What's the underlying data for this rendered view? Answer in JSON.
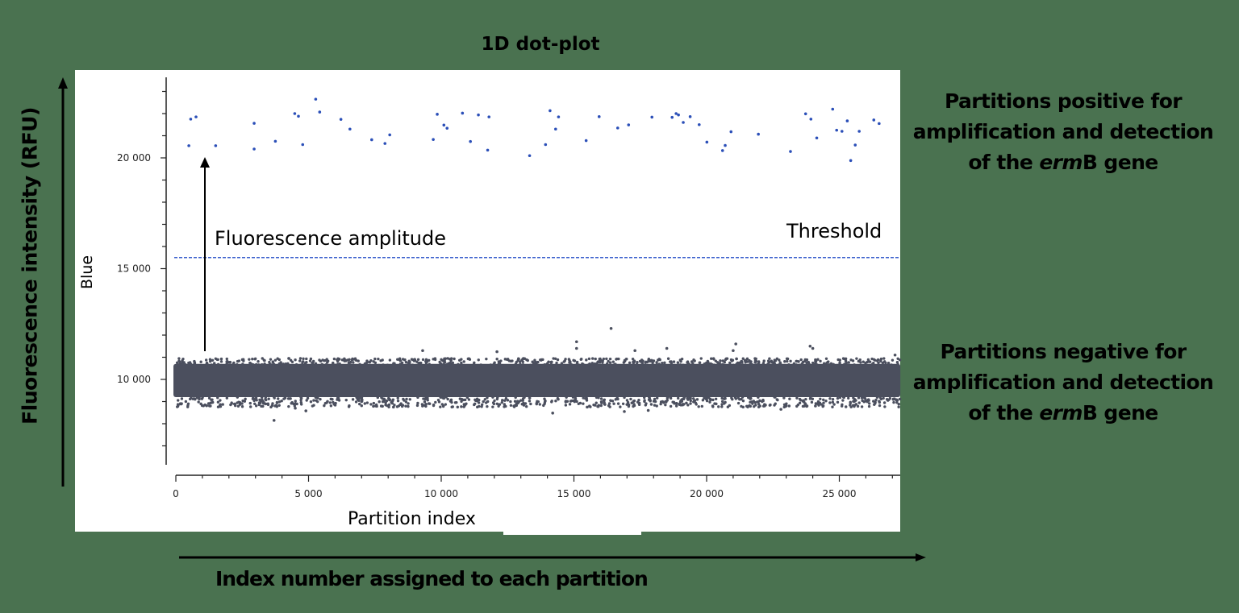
{
  "title": "1D dot-plot",
  "background_color": "#4a7250",
  "panel_color": "#ffffff",
  "annotations": {
    "positive": {
      "line1": "Partitions positive for",
      "line2": "amplification and detection",
      "line3_pre": "of the ",
      "line3_italic": "erm",
      "line3_post": "B gene"
    },
    "negative": {
      "line1": "Partitions negative for",
      "line2": "amplification and detection",
      "line3_pre": "of the ",
      "line3_italic": "erm",
      "line3_post": "B gene"
    },
    "amplitude_arrow_label": "Fluorescence amplitude",
    "threshold_label": "Threshold",
    "outer_y_title": "Fluorescence intensity (RFU)",
    "outer_x_title": "Index number assigned to each partition"
  },
  "chart_data": {
    "type": "scatter",
    "title": "1D dot-plot",
    "xlabel": "Partition index",
    "ylabel": "Blue",
    "xlim": [
      0,
      27300
    ],
    "ylim": [
      6100,
      23600
    ],
    "x_ticks": [
      0,
      5000,
      10000,
      15000,
      20000,
      25000
    ],
    "x_tick_labels": [
      "0",
      "5 000",
      "10 000",
      "15 000",
      "20 000",
      "25 000"
    ],
    "x_minor_tick_step": 1000,
    "y_ticks": [
      10000,
      15000,
      20000
    ],
    "y_tick_labels": [
      "10 000",
      "15 000",
      "20 000"
    ],
    "y_minor_tick_step": 1000,
    "grid": false,
    "legend": null,
    "threshold": {
      "value": 15500,
      "style": "dashed",
      "color": "#3a5fcd"
    },
    "series": [
      {
        "name": "Positive partitions",
        "color": "#2b4fb8",
        "point_values_note": "Estimated from pixel positions; approx. ±100 RFU and ±100 index",
        "points": [
          [
            490,
            20550
          ],
          [
            560,
            21750
          ],
          [
            760,
            21850
          ],
          [
            1500,
            20550
          ],
          [
            2950,
            21560
          ],
          [
            2950,
            20400
          ],
          [
            3750,
            20750
          ],
          [
            4480,
            22000
          ],
          [
            4620,
            21880
          ],
          [
            4780,
            20600
          ],
          [
            5270,
            22650
          ],
          [
            5420,
            22070
          ],
          [
            6220,
            21740
          ],
          [
            6560,
            21300
          ],
          [
            7380,
            20820
          ],
          [
            7880,
            20650
          ],
          [
            8060,
            21040
          ],
          [
            9700,
            20830
          ],
          [
            9850,
            21970
          ],
          [
            10100,
            21480
          ],
          [
            10220,
            21340
          ],
          [
            10800,
            22020
          ],
          [
            11100,
            20740
          ],
          [
            11400,
            21940
          ],
          [
            11750,
            20350
          ],
          [
            11800,
            21850
          ],
          [
            13330,
            20100
          ],
          [
            13930,
            20600
          ],
          [
            14100,
            22130
          ],
          [
            14310,
            21300
          ],
          [
            14420,
            21850
          ],
          [
            15460,
            20780
          ],
          [
            15950,
            21860
          ],
          [
            16650,
            21350
          ],
          [
            17060,
            21490
          ],
          [
            17940,
            21840
          ],
          [
            18700,
            21830
          ],
          [
            18850,
            22000
          ],
          [
            18940,
            21940
          ],
          [
            19120,
            21600
          ],
          [
            19380,
            21860
          ],
          [
            19720,
            21500
          ],
          [
            20010,
            20710
          ],
          [
            20600,
            20330
          ],
          [
            20700,
            20560
          ],
          [
            20920,
            21180
          ],
          [
            21950,
            21070
          ],
          [
            23160,
            20290
          ],
          [
            23730,
            21990
          ],
          [
            23930,
            21750
          ],
          [
            24150,
            20900
          ],
          [
            24750,
            22200
          ],
          [
            24900,
            21250
          ],
          [
            25100,
            21200
          ],
          [
            25300,
            21670
          ],
          [
            25430,
            19880
          ],
          [
            25600,
            20580
          ],
          [
            25750,
            21200
          ],
          [
            26300,
            21710
          ],
          [
            26500,
            21550
          ]
        ]
      },
      {
        "name": "Negative partitions",
        "color": "#4b4f5e",
        "rendering_note": "Dense band drawn procedurally (seeded pseudo-random) to match the observed band extent; individual band dots are not extracted data",
        "band_core_range": [
          9000,
          10850
        ],
        "band_center": 10300,
        "band_x_range": [
          0,
          27300
        ],
        "outliers_note": "Approximate positions estimated from pixels",
        "outliers": [
          [
            3700,
            8150
          ],
          [
            14200,
            8480
          ],
          [
            1100,
            8850
          ],
          [
            1300,
            8800
          ],
          [
            4500,
            8700
          ],
          [
            4900,
            8580
          ],
          [
            8200,
            8750
          ],
          [
            15500,
            8750
          ],
          [
            16900,
            8550
          ],
          [
            17800,
            8600
          ],
          [
            22800,
            8650
          ],
          [
            24100,
            8800
          ],
          [
            9300,
            11300
          ],
          [
            12100,
            11250
          ],
          [
            15100,
            11700
          ],
          [
            15100,
            11400
          ],
          [
            16400,
            12300
          ],
          [
            17300,
            11300
          ],
          [
            18500,
            11400
          ],
          [
            21100,
            11600
          ],
          [
            21000,
            11300
          ],
          [
            23900,
            11500
          ],
          [
            24000,
            11400
          ],
          [
            27100,
            11100
          ]
        ]
      }
    ]
  }
}
